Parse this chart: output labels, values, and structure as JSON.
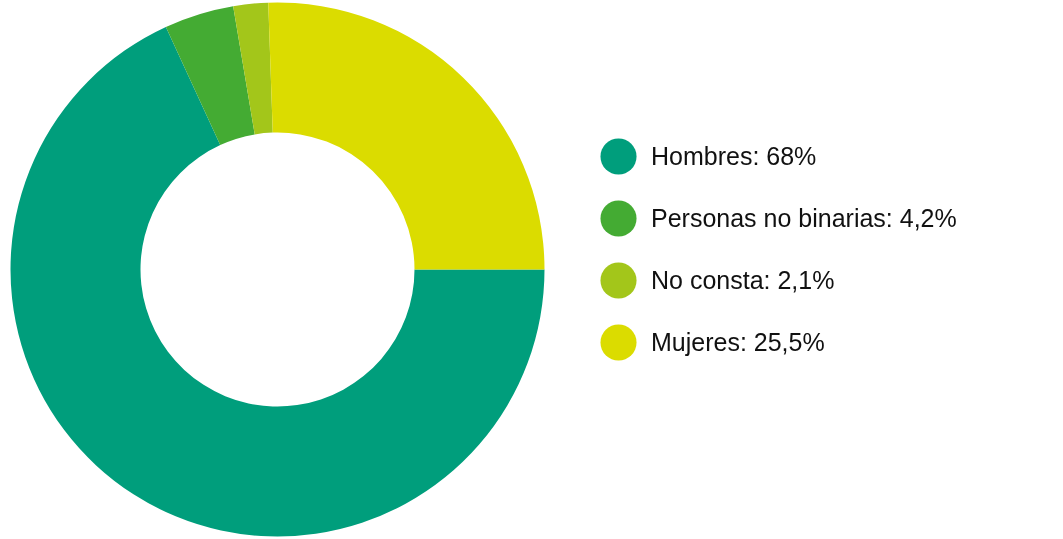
{
  "chart_data": {
    "type": "donut",
    "categories": [
      "Hombres: 68%",
      "Personas no binarias: 4,2%",
      "No consta: 2,1%",
      "Mujeres: 25,5%"
    ],
    "values": [
      68,
      4.2,
      2.1,
      25.5
    ],
    "colors": [
      "#009e7c",
      "#44ab33",
      "#a3c61a",
      "#dbdc00"
    ],
    "legend": "right"
  }
}
